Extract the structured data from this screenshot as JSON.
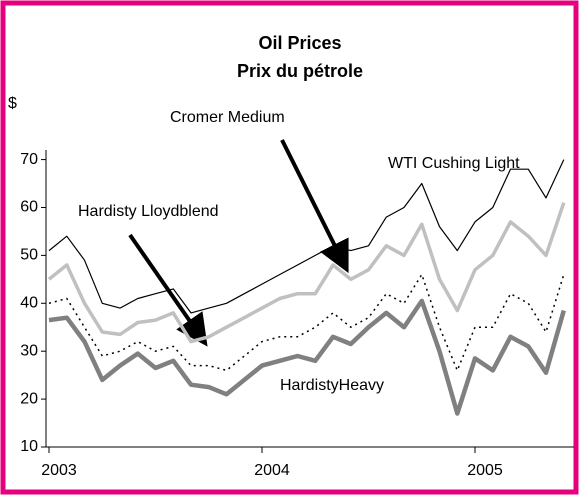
{
  "chart_data": {
    "type": "line",
    "title": "Oil Prices",
    "subtitle": "Prix du pétrole",
    "y_label": "$",
    "categories": [
      "2003",
      null,
      null,
      null,
      null,
      null,
      null,
      null,
      null,
      null,
      null,
      null,
      "2004",
      null,
      null,
      null,
      null,
      null,
      null,
      null,
      null,
      null,
      null,
      null,
      "2005",
      null,
      null,
      null,
      null,
      null
    ],
    "series": [
      {
        "name": "WTI Cushing Light",
        "color": "#000000",
        "width": 1.2,
        "dash": false,
        "values": [
          51,
          54,
          49,
          40,
          39,
          41,
          42,
          43,
          38,
          39,
          40,
          42,
          44,
          46,
          48,
          50,
          52,
          51,
          52,
          58,
          60,
          65,
          56,
          51,
          57,
          60,
          68,
          68,
          62,
          70
        ]
      },
      {
        "name": "Cromer Medium",
        "color": "#c0c0c0",
        "width": 3.5,
        "dash": false,
        "values": [
          45,
          48,
          40,
          34,
          33.5,
          36,
          36.5,
          38,
          32,
          33,
          35,
          37,
          39,
          41,
          42,
          42,
          48,
          45,
          47,
          52,
          50,
          56.5,
          45,
          38.5,
          47,
          50,
          57,
          54,
          50,
          61
        ]
      },
      {
        "name": "Hardisty Lloydblend",
        "color": "#000000",
        "width": 1.5,
        "dash": true,
        "values": [
          40,
          41,
          35,
          29,
          30,
          32,
          30,
          31,
          27,
          27,
          26,
          29,
          32,
          33,
          33,
          35,
          38,
          35,
          37,
          42,
          40,
          46,
          35,
          26,
          35,
          35,
          42,
          40,
          34,
          46
        ]
      },
      {
        "name": "HardistyHeavy",
        "color": "#808080",
        "width": 4.5,
        "dash": false,
        "values": [
          36.5,
          37,
          32,
          24,
          27,
          29.5,
          26.5,
          28,
          23,
          22.5,
          21,
          24,
          27,
          28,
          29,
          28,
          33,
          31.5,
          35,
          38,
          35,
          40.5,
          30,
          17,
          28.5,
          26,
          33,
          31,
          25.5,
          38.5
        ]
      }
    ],
    "ylim": [
      10,
      72
    ],
    "yticks": [
      10,
      20,
      30,
      40,
      50,
      60,
      70
    ],
    "grid": false
  }
}
